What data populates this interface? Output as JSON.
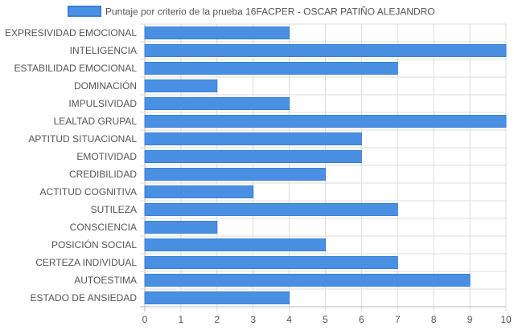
{
  "chart_data": {
    "type": "bar",
    "orientation": "horizontal",
    "categories": [
      "EXPRESIVIDAD EMOCIONAL",
      "INTELIGENCIA",
      "ESTABILIDAD EMOCIONAL",
      "DOMINACIÓN",
      "IMPULSIVIDAD",
      "LEALTAD GRUPAL",
      "APTITUD SITUACIONAL",
      "EMOTIVIDAD",
      "CREDIBILIDAD",
      "ACTITUD COGNITIVA",
      "SUTILEZA",
      "CONSCIENCIA",
      "POSICIÓN SOCIAL",
      "CERTEZA INDIVIDUAL",
      "AUTOESTIMA",
      "ESTADO DE ANSIEDAD"
    ],
    "series": [
      {
        "name": "Puntaje por criterio de la prueba 16FACPER - OSCAR PATIÑO ALEJANDRO",
        "values": [
          4,
          10,
          7,
          2,
          4,
          10,
          6,
          6,
          5,
          3,
          7,
          2,
          5,
          7,
          9,
          4
        ]
      }
    ],
    "xlim": [
      0,
      10
    ],
    "x_ticks": [
      "0",
      "1",
      "2",
      "3",
      "4",
      "5",
      "6",
      "7",
      "8",
      "9",
      "10"
    ],
    "grid": true,
    "legend_position": "top",
    "colors": {
      "bar_fill": "#4a90e2",
      "bar_stroke": "#3a7fd5",
      "grid": "#dddddd"
    }
  }
}
